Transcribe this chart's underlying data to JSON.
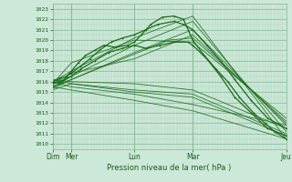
{
  "title": "Pression niveau de la mer( hPa )",
  "ylim": [
    1009.5,
    1023.5
  ],
  "yticks": [
    1010,
    1011,
    1012,
    1013,
    1014,
    1015,
    1016,
    1017,
    1018,
    1019,
    1020,
    1021,
    1022,
    1023
  ],
  "background_color": "#cce8d8",
  "grid_color_minor": "#aaccb8",
  "grid_color_major": "#88bb99",
  "line_color": "#1a6b1a",
  "day_labels": [
    "Dim",
    "Mer",
    "Lun",
    "Mar",
    "Jeu"
  ],
  "day_positions": [
    0.0,
    0.08,
    0.35,
    0.6,
    1.0
  ],
  "xlim": [
    0.0,
    1.0
  ],
  "ensemble_lines": [
    {
      "x": [
        0.0,
        0.08,
        0.35,
        0.6,
        1.0
      ],
      "y": [
        1016.0,
        1017.0,
        1020.2,
        1022.3,
        1010.5
      ]
    },
    {
      "x": [
        0.0,
        0.08,
        0.35,
        0.6,
        1.0
      ],
      "y": [
        1015.8,
        1016.5,
        1019.5,
        1021.8,
        1011.2
      ]
    },
    {
      "x": [
        0.0,
        0.08,
        0.35,
        0.6,
        1.0
      ],
      "y": [
        1015.5,
        1016.2,
        1018.8,
        1021.0,
        1011.8
      ]
    },
    {
      "x": [
        0.0,
        0.08,
        0.35,
        0.6,
        1.0
      ],
      "y": [
        1015.8,
        1017.8,
        1020.0,
        1019.8,
        1012.5
      ]
    },
    {
      "x": [
        0.0,
        0.08,
        0.35,
        0.6,
        1.0
      ],
      "y": [
        1016.2,
        1016.0,
        1015.8,
        1015.2,
        1011.5
      ]
    },
    {
      "x": [
        0.0,
        0.08,
        0.35,
        0.6,
        1.0
      ],
      "y": [
        1015.2,
        1015.8,
        1015.2,
        1014.8,
        1011.0
      ]
    },
    {
      "x": [
        0.0,
        0.08,
        0.35,
        0.6,
        1.0
      ],
      "y": [
        1016.0,
        1015.5,
        1014.8,
        1013.8,
        1011.8
      ]
    },
    {
      "x": [
        0.0,
        0.08,
        0.35,
        0.6,
        1.0
      ],
      "y": [
        1015.5,
        1015.2,
        1014.2,
        1013.2,
        1010.5
      ]
    },
    {
      "x": [
        0.0,
        0.08,
        0.35,
        0.6,
        1.0
      ],
      "y": [
        1016.2,
        1015.8,
        1015.0,
        1014.5,
        1010.8
      ]
    },
    {
      "x": [
        0.0,
        0.08,
        0.5,
        0.6,
        1.0
      ],
      "y": [
        1015.3,
        1016.2,
        1020.0,
        1020.2,
        1012.2
      ]
    },
    {
      "x": [
        0.0,
        0.08,
        0.35,
        0.6,
        1.0
      ],
      "y": [
        1015.8,
        1016.8,
        1018.2,
        1020.5,
        1012.0
      ]
    }
  ],
  "main_lines": [
    {
      "x": [
        0.0,
        0.03,
        0.05,
        0.08,
        0.11,
        0.14,
        0.18,
        0.22,
        0.27,
        0.32,
        0.35,
        0.38,
        0.42,
        0.47,
        0.52,
        0.56,
        0.6,
        0.65,
        0.7,
        0.75,
        0.8,
        0.86,
        0.91,
        0.95,
        1.0
      ],
      "y": [
        1015.5,
        1015.8,
        1016.2,
        1017.0,
        1017.8,
        1018.5,
        1019.0,
        1019.5,
        1019.3,
        1019.5,
        1019.8,
        1020.5,
        1021.5,
        1022.2,
        1022.3,
        1022.0,
        1020.0,
        1018.5,
        1017.2,
        1016.0,
        1014.5,
        1013.0,
        1012.0,
        1011.2,
        1010.5
      ]
    },
    {
      "x": [
        0.0,
        0.03,
        0.06,
        0.08,
        0.12,
        0.16,
        0.2,
        0.25,
        0.3,
        0.35,
        0.4,
        0.45,
        0.52,
        0.56,
        0.6,
        0.66,
        0.72,
        0.78,
        0.85,
        0.92,
        1.0
      ],
      "y": [
        1016.0,
        1016.3,
        1016.5,
        1016.8,
        1017.5,
        1018.2,
        1019.0,
        1019.8,
        1020.2,
        1020.5,
        1021.0,
        1021.5,
        1021.8,
        1021.5,
        1021.0,
        1019.5,
        1018.0,
        1016.2,
        1014.2,
        1012.5,
        1011.5
      ]
    },
    {
      "x": [
        0.0,
        0.04,
        0.08,
        0.12,
        0.18,
        0.24,
        0.3,
        0.35,
        0.4,
        0.46,
        0.52,
        0.58,
        0.6,
        0.66,
        0.72,
        0.78,
        0.85,
        0.92,
        1.0
      ],
      "y": [
        1015.8,
        1016.0,
        1016.5,
        1017.2,
        1018.0,
        1018.8,
        1019.2,
        1019.5,
        1019.2,
        1019.5,
        1019.8,
        1019.8,
        1019.5,
        1018.2,
        1016.5,
        1014.5,
        1013.0,
        1011.5,
        1010.8
      ]
    }
  ]
}
